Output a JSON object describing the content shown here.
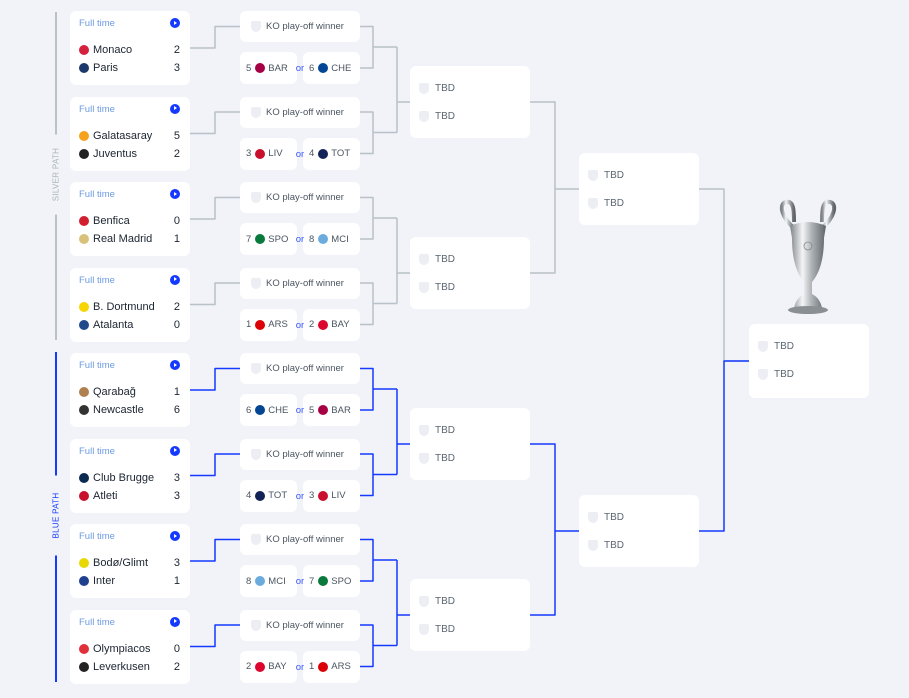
{
  "colors": {
    "silver": "#b8c2c8",
    "blue": "#1439ff",
    "accent_text": "#6d9ae0"
  },
  "paths": {
    "silver": "SILVER PATH",
    "blue": "BLUE PATH"
  },
  "matches": [
    {
      "status": "Full time",
      "home": {
        "name": "Monaco",
        "score": "2",
        "color": "#d4213d"
      },
      "away": {
        "name": "Paris",
        "score": "3",
        "color": "#1b3a6b"
      }
    },
    {
      "status": "Full time",
      "home": {
        "name": "Galatasaray",
        "score": "5",
        "color": "#f6a21a"
      },
      "away": {
        "name": "Juventus",
        "score": "2",
        "color": "#222222"
      }
    },
    {
      "status": "Full time",
      "home": {
        "name": "Benfica",
        "score": "0",
        "color": "#d0202e"
      },
      "away": {
        "name": "Real Madrid",
        "score": "1",
        "color": "#d8c27a"
      }
    },
    {
      "status": "Full time",
      "home": {
        "name": "B. Dortmund",
        "score": "2",
        "color": "#f7d500"
      },
      "away": {
        "name": "Atalanta",
        "score": "0",
        "color": "#1e4a8a"
      }
    },
    {
      "status": "Full time",
      "home": {
        "name": "Qarabağ",
        "score": "1",
        "color": "#b08050"
      },
      "away": {
        "name": "Newcastle",
        "score": "6",
        "color": "#333333"
      }
    },
    {
      "status": "Full time",
      "home": {
        "name": "Club Brugge",
        "score": "3",
        "color": "#0a2a4f"
      },
      "away": {
        "name": "Atleti",
        "score": "3",
        "color": "#c8102e"
      }
    },
    {
      "status": "Full time",
      "home": {
        "name": "Bodø/Glimt",
        "score": "3",
        "color": "#e8d800"
      },
      "away": {
        "name": "Inter",
        "score": "1",
        "color": "#1f3f8f"
      }
    },
    {
      "status": "Full time",
      "home": {
        "name": "Olympiacos",
        "score": "0",
        "color": "#e0303a"
      },
      "away": {
        "name": "Leverkusen",
        "score": "2",
        "color": "#222222"
      }
    }
  ],
  "ko": [
    {
      "label": "KO play-off winner",
      "a": {
        "seed": "5",
        "code": "BAR",
        "color": "#a50044"
      },
      "or": "or",
      "b": {
        "seed": "6",
        "code": "CHE",
        "color": "#034694"
      }
    },
    {
      "label": "KO play-off winner",
      "a": {
        "seed": "3",
        "code": "LIV",
        "color": "#c8102e"
      },
      "or": "or",
      "b": {
        "seed": "4",
        "code": "TOT",
        "color": "#132257"
      }
    },
    {
      "label": "KO play-off winner",
      "a": {
        "seed": "7",
        "code": "SPO",
        "color": "#0a7a3c"
      },
      "or": "or",
      "b": {
        "seed": "8",
        "code": "MCI",
        "color": "#6cabdd"
      }
    },
    {
      "label": "KO play-off winner",
      "a": {
        "seed": "1",
        "code": "ARS",
        "color": "#db0007"
      },
      "or": "or",
      "b": {
        "seed": "2",
        "code": "BAY",
        "color": "#dc052d"
      }
    },
    {
      "label": "KO play-off winner",
      "a": {
        "seed": "6",
        "code": "CHE",
        "color": "#034694"
      },
      "or": "or",
      "b": {
        "seed": "5",
        "code": "BAR",
        "color": "#a50044"
      }
    },
    {
      "label": "KO play-off winner",
      "a": {
        "seed": "4",
        "code": "TOT",
        "color": "#132257"
      },
      "or": "or",
      "b": {
        "seed": "3",
        "code": "LIV",
        "color": "#c8102e"
      }
    },
    {
      "label": "KO play-off winner",
      "a": {
        "seed": "8",
        "code": "MCI",
        "color": "#6cabdd"
      },
      "or": "or",
      "b": {
        "seed": "7",
        "code": "SPO",
        "color": "#0a7a3c"
      }
    },
    {
      "label": "KO play-off winner",
      "a": {
        "seed": "2",
        "code": "BAY",
        "color": "#dc052d"
      },
      "or": "or",
      "b": {
        "seed": "1",
        "code": "ARS",
        "color": "#db0007"
      }
    }
  ],
  "quarterfinals": [
    {
      "a": "TBD",
      "b": "TBD"
    },
    {
      "a": "TBD",
      "b": "TBD"
    },
    {
      "a": "TBD",
      "b": "TBD"
    },
    {
      "a": "TBD",
      "b": "TBD"
    }
  ],
  "semifinals": [
    {
      "a": "TBD",
      "b": "TBD"
    },
    {
      "a": "TBD",
      "b": "TBD"
    }
  ],
  "final": {
    "a": "TBD",
    "b": "TBD"
  },
  "trophy_icon": "champions-league-trophy"
}
